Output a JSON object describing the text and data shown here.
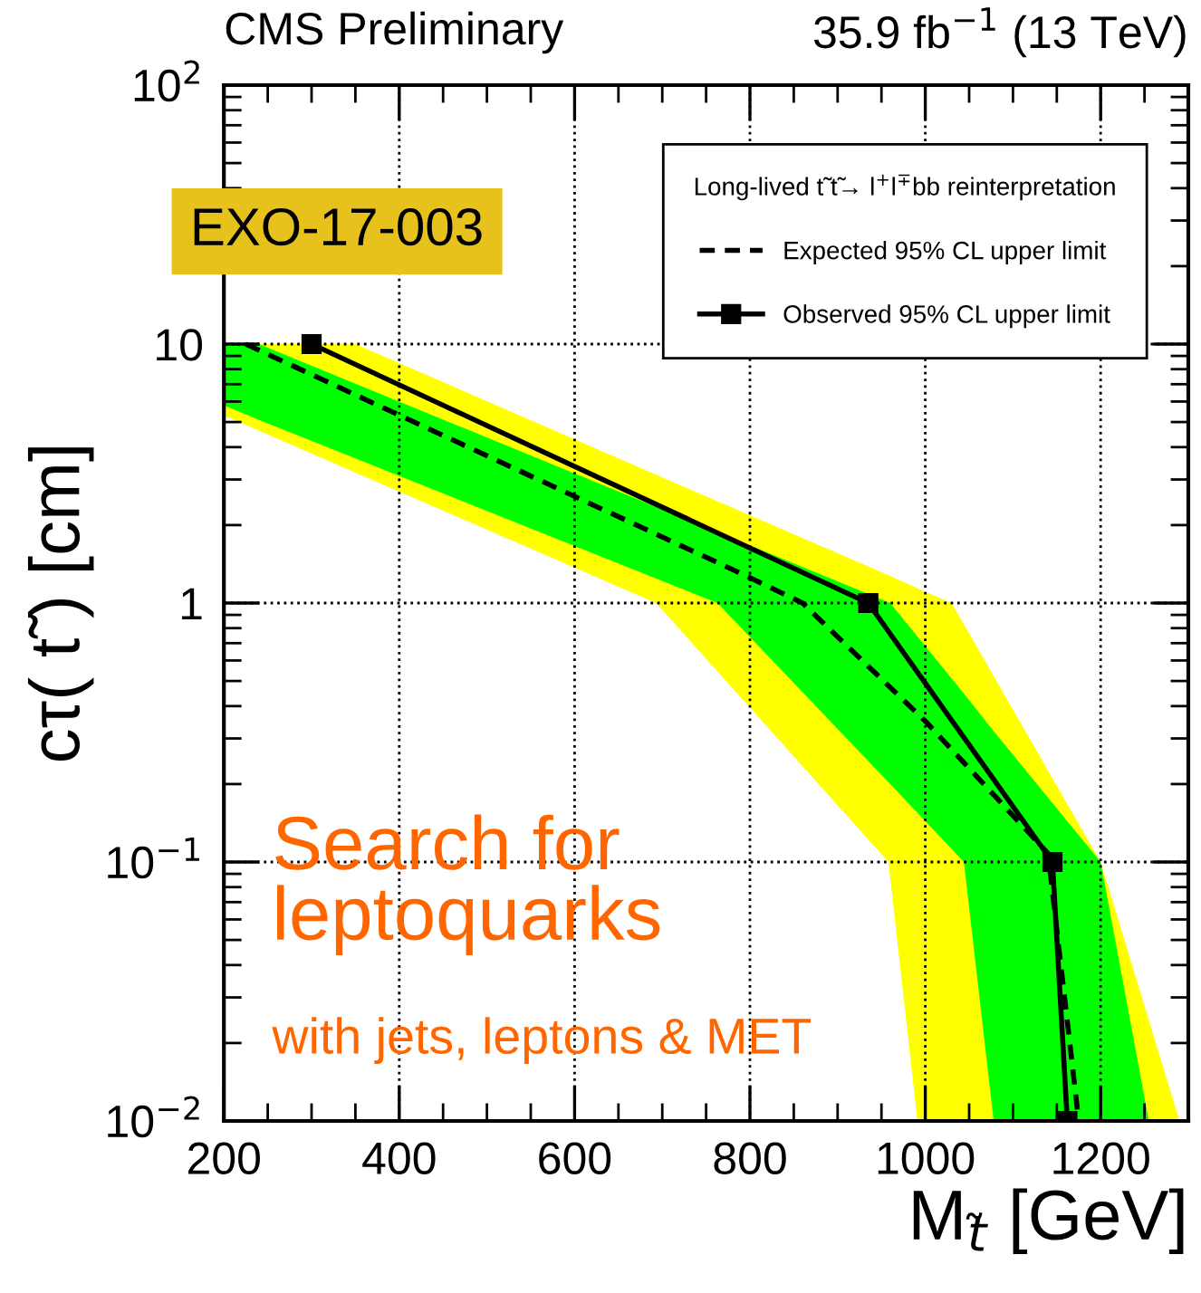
{
  "chart_data": {
    "type": "line",
    "title": "CMS Preliminary",
    "subtitle": "35.9 fb$^{−1}$ (13 TeV)",
    "xlabel": "M$_{t̃}$ [GeV]",
    "ylabel": "cτ( t̃ ) [cm]",
    "legend_title": "Long-lived t̃ t̃→ l$^{+}$l$^{∓}$bb reinterpretation",
    "annotations": [
      "EXO-17-003",
      "Search for\nleptoquarks",
      "with jets, leptons & MET"
    ],
    "series": [
      {
        "type": "area",
        "color": "#ffff00",
        "x": [
          200,
          350,
          693,
          958,
          991,
          1030,
          1200,
          1290
        ],
        "values": [
          null,
          null,
          null,
          null,
          null,
          null,
          null,
          null
        ],
        "lower": [
          5.3,
          3.19,
          1,
          0.1,
          0.01,
          0.01,
          0.01,
          0.01
        ],
        "upper": [
          10,
          10,
          3.13,
          1.28,
          1.14,
          1,
          0.1,
          0.01
        ]
      },
      {
        "type": "area",
        "color": "#00ff00",
        "x": [
          200,
          240,
          763,
          960,
          1044,
          1078,
          1200,
          1255
        ],
        "values": [
          null,
          null,
          null,
          null,
          null,
          null,
          null,
          null
        ],
        "lower": [
          5.8,
          5.1,
          1,
          0.2,
          0.1,
          0.01,
          0.01,
          0.01
        ],
        "upper": [
          10,
          10,
          1.88,
          1,
          0.447,
          0.32,
          0.1,
          0.01
        ]
      },
      {
        "name": "Expected 95% CL upper limit",
        "color": "#000000",
        "line_style": "dashed",
        "marker": "none",
        "x": [
          225,
          790,
          860,
          1000,
          1140,
          1175
        ],
        "values": [
          10,
          1.3,
          1,
          0.35,
          0.108,
          0.01
        ]
      },
      {
        "name": "Observed 95% CL upper limit",
        "color": "#000000",
        "line_style": "solid",
        "marker": "square",
        "x": [
          300,
          935,
          1145,
          1162
        ],
        "values": [
          10,
          1,
          0.1,
          0.01
        ]
      }
    ],
    "xlim": [
      200,
      1300
    ],
    "xticks": [
      200,
      400,
      600,
      800,
      1000,
      1200
    ],
    "ylim": [
      0.01,
      100
    ],
    "yticks": [
      {
        "value": 0.01,
        "label": "10$^{−2}$"
      },
      {
        "value": 0.1,
        "label": "10$^{−1}$"
      },
      1,
      10,
      {
        "value": 100,
        "label": "10$^{2}$"
      }
    ],
    "log": "y",
    "grid": true,
    "legend": "top right"
  }
}
